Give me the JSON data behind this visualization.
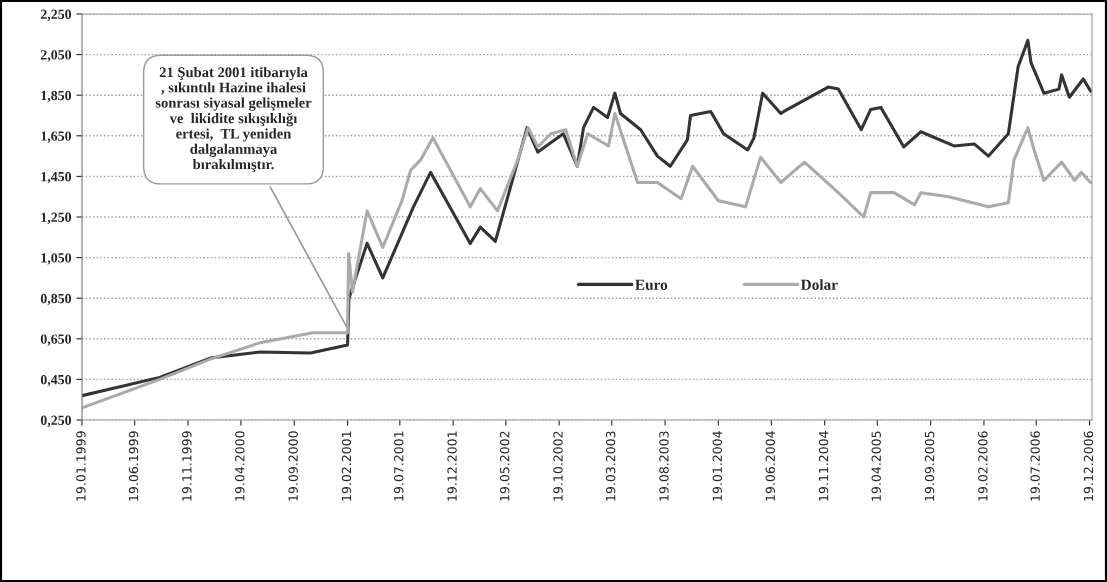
{
  "chart_data": {
    "type": "line",
    "x": [
      "1999-01-19",
      "1999-08-30",
      "2000-01-22",
      "2000-06-12",
      "2000-11-05",
      "2001-02-19",
      "2001-02-23",
      "2001-04-16",
      "2001-05-31",
      "2001-08-27",
      "2001-10-15",
      "2002-02-06",
      "2002-03-07",
      "2002-04-19",
      "2002-07-19",
      "2002-08-19",
      "2002-10-31",
      "2002-12-10",
      "2002-12-28",
      "2003-01-26",
      "2003-03-07",
      "2003-03-28",
      "2003-04-13",
      "2003-06-10",
      "2003-07-28",
      "2003-09-03",
      "2003-10-22",
      "2003-10-31",
      "2003-12-28",
      "2004-02-03",
      "2004-04-12",
      "2004-04-30",
      "2004-05-25",
      "2004-07-16",
      "2004-07-25",
      "2004-11-29",
      "2004-12-28",
      "2005-03-04",
      "2005-03-31",
      "2005-04-29",
      "2005-07-04",
      "2005-08-22",
      "2005-11-25",
      "2006-01-22",
      "2006-03-04",
      "2006-04-30",
      "2006-05-28",
      "2006-06-25",
      "2006-07-04",
      "2006-08-10",
      "2006-09-22",
      "2006-09-30",
      "2006-10-22",
      "2006-12-01",
      "2006-12-22"
    ],
    "series": [
      {
        "name": "Euro",
        "color": "#333333",
        "values": [
          0.37,
          0.46,
          0.555,
          0.585,
          0.58,
          0.62,
          0.85,
          1.12,
          0.95,
          1.3,
          1.47,
          1.12,
          1.2,
          1.13,
          1.69,
          1.57,
          1.66,
          1.5,
          1.69,
          1.79,
          1.74,
          1.86,
          1.76,
          1.68,
          1.55,
          1.5,
          1.63,
          1.75,
          1.77,
          1.66,
          1.58,
          1.64,
          1.86,
          1.76,
          1.77,
          1.89,
          1.88,
          1.68,
          1.78,
          1.79,
          1.595,
          1.67,
          1.6,
          1.61,
          1.55,
          1.66,
          1.99,
          2.12,
          2.01,
          1.86,
          1.88,
          1.95,
          1.84,
          1.93,
          1.87
        ]
      },
      {
        "name": "Dolar",
        "color": "#aaaaaa",
        "x": [
          "1999-01-19",
          "1999-08-30",
          "2000-01-22",
          "2000-06-12",
          "2000-11-12",
          "2001-02-19",
          "2001-02-22",
          "2001-03-05",
          "2001-04-16",
          "2001-05-31",
          "2001-07-25",
          "2001-08-19",
          "2001-09-16",
          "2001-10-22",
          "2002-02-06",
          "2002-03-07",
          "2002-04-25",
          "2002-06-22",
          "2002-07-22",
          "2002-08-19",
          "2002-09-25",
          "2002-11-07",
          "2002-12-10",
          "2003-01-09",
          "2003-03-10",
          "2003-03-28",
          "2003-06-01",
          "2003-07-28",
          "2003-10-04",
          "2003-11-06",
          "2004-01-19",
          "2004-04-06",
          "2004-05-19",
          "2004-07-16",
          "2004-09-22",
          "2004-12-28",
          "2005-03-11",
          "2005-03-31",
          "2005-06-06",
          "2005-08-04",
          "2005-08-22",
          "2005-11-10",
          "2006-03-04",
          "2006-04-30",
          "2006-05-16",
          "2006-06-25",
          "2006-07-13",
          "2006-08-10",
          "2006-09-30",
          "2006-11-06",
          "2006-11-25",
          "2006-12-22"
        ],
        "values": [
          0.31,
          0.45,
          0.55,
          0.63,
          0.68,
          0.68,
          1.07,
          0.88,
          1.28,
          1.1,
          1.33,
          1.48,
          1.53,
          1.64,
          1.3,
          1.39,
          1.28,
          1.53,
          1.69,
          1.595,
          1.66,
          1.68,
          1.5,
          1.66,
          1.6,
          1.76,
          1.42,
          1.42,
          1.34,
          1.5,
          1.33,
          1.3,
          1.545,
          1.42,
          1.52,
          1.37,
          1.25,
          1.37,
          1.37,
          1.31,
          1.37,
          1.35,
          1.3,
          1.32,
          1.53,
          1.69,
          1.58,
          1.43,
          1.52,
          1.43,
          1.47,
          1.42
        ]
      }
    ],
    "xlim": [
      "1999-01-19",
      "2006-12-26"
    ],
    "xticks": [
      {
        "value": "1999-01-19",
        "label": "19.01.1999"
      },
      {
        "value": "1999-06-19",
        "label": "19.06.1999"
      },
      {
        "value": "1999-11-19",
        "label": "19.11.1999"
      },
      {
        "value": "2000-04-19",
        "label": "19.04.2000"
      },
      {
        "value": "2000-09-19",
        "label": "19.09.2000"
      },
      {
        "value": "2001-02-19",
        "label": "19.02.2001"
      },
      {
        "value": "2001-07-19",
        "label": "19.07.2001"
      },
      {
        "value": "2001-12-19",
        "label": "19.12.2001"
      },
      {
        "value": "2002-05-19",
        "label": "19.05.2002"
      },
      {
        "value": "2002-10-19",
        "label": "19.10.2002"
      },
      {
        "value": "2003-03-19",
        "label": "19.03.2003"
      },
      {
        "value": "2003-08-19",
        "label": "19.08.2003"
      },
      {
        "value": "2004-01-19",
        "label": "19.01.2004"
      },
      {
        "value": "2004-06-19",
        "label": "19.06.2004"
      },
      {
        "value": "2004-11-19",
        "label": "19.11.2004"
      },
      {
        "value": "2005-04-19",
        "label": "19.04.2005"
      },
      {
        "value": "2005-09-19",
        "label": "19.09.2005"
      },
      {
        "value": "2006-02-19",
        "label": "19.02.2006"
      },
      {
        "value": "2006-07-19",
        "label": "19.07.2006"
      },
      {
        "value": "2006-12-19",
        "label": "19.12.2006"
      }
    ],
    "ylim": [
      0.25,
      2.25
    ],
    "yticks": [
      {
        "value": 0.25,
        "label": "0,250"
      },
      {
        "value": 0.45,
        "label": "0,450"
      },
      {
        "value": 0.65,
        "label": "0,650"
      },
      {
        "value": 0.85,
        "label": "0,850"
      },
      {
        "value": 1.05,
        "label": "1,050"
      },
      {
        "value": 1.25,
        "label": "1,250"
      },
      {
        "value": 1.45,
        "label": "1,450"
      },
      {
        "value": 1.65,
        "label": "1,650"
      },
      {
        "value": 1.85,
        "label": "1,850"
      },
      {
        "value": 2.05,
        "label": "2,050"
      },
      {
        "value": 2.25,
        "label": "2,250"
      }
    ],
    "annotations": [
      {
        "text": "21 Şubat 2001 itibarıyla\n, sıkıntılı Hazine ihalesi\nsonrası siyasal gelişmeler\nve  likidite sıkışıklığı\nertesi,  TL yeniden\ndalgalanmaya\nbırakılmıştır.",
        "x": "2001-02-19",
        "y": 0.7
      }
    ],
    "grid": "y",
    "legend": "bottom right",
    "marker": "none",
    "line_style": "solid"
  }
}
